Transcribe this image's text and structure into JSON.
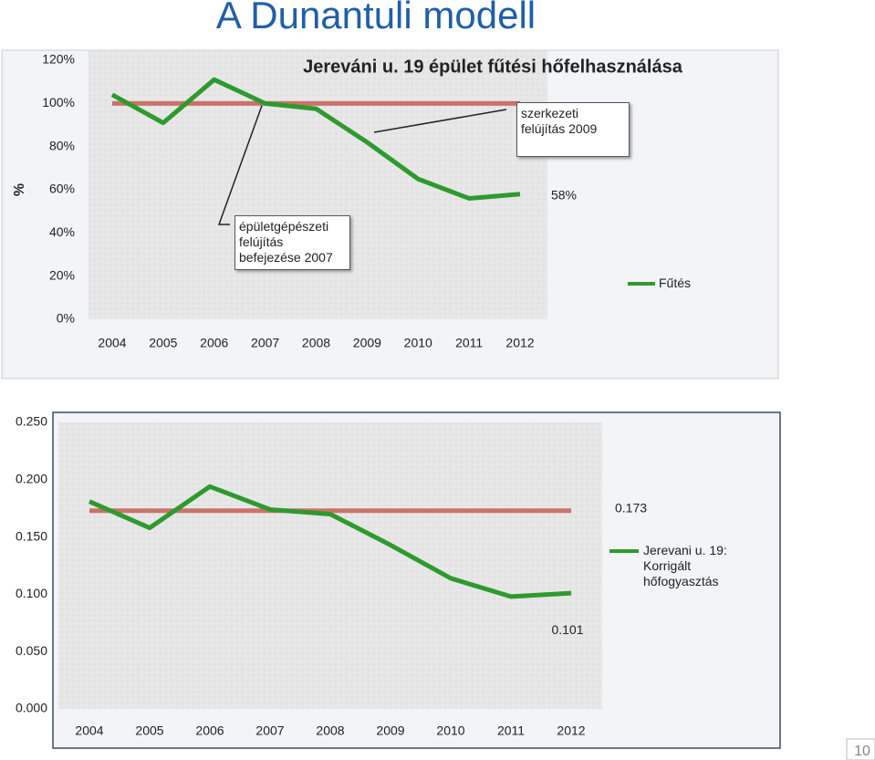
{
  "title": "A Dunantuli modell",
  "page_number": "10",
  "chart_data": [
    {
      "type": "line",
      "title": "Jereváni u. 19 épület fűtési hőfelhasználása",
      "y_label": "%",
      "categories": [
        "2004",
        "2005",
        "2006",
        "2007",
        "2008",
        "2009",
        "2010",
        "2011",
        "2012"
      ],
      "series": [
        {
          "name": "Fűtés",
          "color": "#2e9a2e",
          "values": [
            104,
            91,
            111,
            100,
            97.5,
            82,
            65,
            56,
            58
          ],
          "value_labels": [
            null,
            null,
            null,
            null,
            null,
            null,
            null,
            null,
            "58%"
          ]
        }
      ],
      "reference": {
        "value": 100,
        "color": "#c9736a"
      },
      "annotations": [
        "szerkezeti felújítás 2009",
        "épületgépészeti felújítás befejezése 2007"
      ],
      "ylim": [
        0,
        120
      ],
      "yticks": [
        {
          "value": 0,
          "label": "0%"
        },
        {
          "value": 20,
          "label": "20%"
        },
        {
          "value": 40,
          "label": "40%"
        },
        {
          "value": 60,
          "label": "60%"
        },
        {
          "value": 80,
          "label": "80%"
        },
        {
          "value": 100,
          "label": "100%"
        },
        {
          "value": 120,
          "label": "120%"
        }
      ]
    },
    {
      "type": "line",
      "categories": [
        "2004",
        "2005",
        "2006",
        "2007",
        "2008",
        "2009",
        "2010",
        "2011",
        "2012"
      ],
      "series": [
        {
          "name": "Jerevani u. 19: Korrigált hőfogyasztás",
          "color": "#2e9a2e",
          "values": [
            0.181,
            0.158,
            0.194,
            0.174,
            0.17,
            0.143,
            0.114,
            0.098,
            0.101
          ],
          "value_labels": [
            null,
            null,
            null,
            null,
            null,
            null,
            null,
            null,
            "0.101"
          ]
        }
      ],
      "reference": {
        "value": 0.173,
        "label": "0.173",
        "color": "#c9736a"
      },
      "ylim": [
        0,
        0.25
      ],
      "yticks": [
        {
          "value": 0,
          "label": "0.000"
        },
        {
          "value": 0.05,
          "label": "0.050"
        },
        {
          "value": 0.1,
          "label": "0.100"
        },
        {
          "value": 0.15,
          "label": "0.150"
        },
        {
          "value": 0.2,
          "label": "0.200"
        },
        {
          "value": 0.25,
          "label": "0.250"
        }
      ]
    }
  ]
}
